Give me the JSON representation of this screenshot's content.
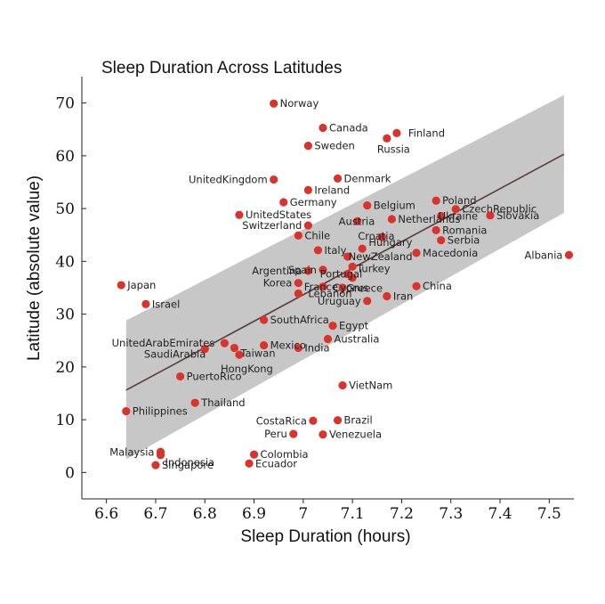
{
  "chart_data": {
    "type": "scatter",
    "title": "Sleep Duration Across Latitudes",
    "xlabel": "Sleep Duration (hours)",
    "ylabel": "Latitude (absolute value)",
    "xlim": [
      6.55,
      7.55
    ],
    "ylim": [
      -5,
      75
    ],
    "x_ticks": [
      6.6,
      6.7,
      6.8,
      6.9,
      7.0,
      7.1,
      7.2,
      7.3,
      7.4,
      7.5
    ],
    "x_tick_labels": [
      "6.6",
      "6.7",
      "6.8",
      "6.9",
      "7",
      "7.1",
      "7.2",
      "7.3",
      "7.4",
      "7.5"
    ],
    "y_ticks": [
      0,
      10,
      20,
      30,
      40,
      50,
      60,
      70
    ],
    "y_tick_labels": [
      "0",
      "10",
      "20",
      "30",
      "40",
      "50",
      "60",
      "70"
    ],
    "grid": false,
    "regression": {
      "x": [
        6.64,
        7.53
      ],
      "y": [
        15.6,
        60.3
      ],
      "ci_upper": [
        28.8,
        71.5
      ],
      "ci_lower": [
        2.5,
        49.2
      ]
    },
    "points": [
      {
        "label": "Norway",
        "x": 6.94,
        "y": 69.9
      },
      {
        "label": "Canada",
        "x": 7.04,
        "y": 65.3
      },
      {
        "label": "Finland",
        "x": 7.19,
        "y": 64.3
      },
      {
        "label": "Russia",
        "x": 7.17,
        "y": 63.3
      },
      {
        "label": "Sweden",
        "x": 7.01,
        "y": 61.9
      },
      {
        "label": "UnitedKingdom",
        "x": 6.94,
        "y": 55.5
      },
      {
        "label": "Denmark",
        "x": 7.07,
        "y": 55.7
      },
      {
        "label": "Ireland",
        "x": 7.01,
        "y": 53.5
      },
      {
        "label": "Germany",
        "x": 6.96,
        "y": 51.2
      },
      {
        "label": "Belgium",
        "x": 7.13,
        "y": 50.6
      },
      {
        "label": "Poland",
        "x": 7.27,
        "y": 51.5
      },
      {
        "label": "CzechRepublic",
        "x": 7.31,
        "y": 49.9
      },
      {
        "label": "Ukraine",
        "x": 7.28,
        "y": 48.6
      },
      {
        "label": "Slovakia",
        "x": 7.38,
        "y": 48.7
      },
      {
        "label": "UnitedStates",
        "x": 6.87,
        "y": 48.8
      },
      {
        "label": "Netherlands",
        "x": 7.18,
        "y": 48.0
      },
      {
        "label": "Austria",
        "x": 7.11,
        "y": 47.6
      },
      {
        "label": "Switzerland",
        "x": 7.01,
        "y": 46.8
      },
      {
        "label": "Romania",
        "x": 7.27,
        "y": 45.9
      },
      {
        "label": "Chile",
        "x": 6.99,
        "y": 44.9
      },
      {
        "label": "Hungary",
        "x": 7.16,
        "y": 44.6
      },
      {
        "label": "Serbia",
        "x": 7.28,
        "y": 44.0
      },
      {
        "label": "Italy",
        "x": 7.03,
        "y": 42.1
      },
      {
        "label": "Croatia",
        "x": 7.12,
        "y": 42.4
      },
      {
        "label": "Macedonia",
        "x": 7.23,
        "y": 41.6
      },
      {
        "label": "Albania",
        "x": 7.54,
        "y": 41.2
      },
      {
        "label": "NewZealand",
        "x": 7.09,
        "y": 40.9
      },
      {
        "label": "Turkey",
        "x": 7.1,
        "y": 39.0
      },
      {
        "label": "Spain",
        "x": 7.04,
        "y": 38.4
      },
      {
        "label": "Argentina",
        "x": 7.01,
        "y": 38.2
      },
      {
        "label": "Portugal",
        "x": 7.09,
        "y": 37.6
      },
      {
        "label": "Greece",
        "x": 7.1,
        "y": 36.9
      },
      {
        "label": "Korea",
        "x": 6.99,
        "y": 35.9
      },
      {
        "label": "France",
        "x": 7.04,
        "y": 35.2
      },
      {
        "label": "Cyprus",
        "x": 7.08,
        "y": 35.0
      },
      {
        "label": "China",
        "x": 7.23,
        "y": 35.3
      },
      {
        "label": "Japan",
        "x": 6.63,
        "y": 35.5
      },
      {
        "label": "Lebanon",
        "x": 6.99,
        "y": 33.9
      },
      {
        "label": "Iran",
        "x": 7.17,
        "y": 33.4
      },
      {
        "label": "Uruguay",
        "x": 7.13,
        "y": 32.5
      },
      {
        "label": "Israel",
        "x": 6.68,
        "y": 31.9
      },
      {
        "label": "SouthAfrica",
        "x": 6.92,
        "y": 28.9
      },
      {
        "label": "Egypt",
        "x": 7.06,
        "y": 27.8
      },
      {
        "label": "Australia",
        "x": 7.05,
        "y": 25.3
      },
      {
        "label": "UnitedArabEmirates",
        "x": 6.84,
        "y": 24.5
      },
      {
        "label": "SaudiArabia",
        "x": 6.8,
        "y": 23.4
      },
      {
        "label": "Taiwan",
        "x": 6.86,
        "y": 23.6
      },
      {
        "label": "Mexico",
        "x": 6.92,
        "y": 24.1
      },
      {
        "label": "India",
        "x": 6.99,
        "y": 23.6
      },
      {
        "label": "HongKong",
        "x": 6.87,
        "y": 22.3
      },
      {
        "label": "PuertoRico",
        "x": 6.75,
        "y": 18.2
      },
      {
        "label": "VietNam",
        "x": 7.08,
        "y": 16.5
      },
      {
        "label": "Thailand",
        "x": 6.78,
        "y": 13.2
      },
      {
        "label": "Philippines",
        "x": 6.64,
        "y": 11.6
      },
      {
        "label": "CostaRica",
        "x": 7.02,
        "y": 9.8
      },
      {
        "label": "Brazil",
        "x": 7.07,
        "y": 9.9
      },
      {
        "label": "Peru",
        "x": 6.98,
        "y": 7.3
      },
      {
        "label": "Venezuela",
        "x": 7.04,
        "y": 7.2
      },
      {
        "label": "Malaysia",
        "x": 6.71,
        "y": 3.9
      },
      {
        "label": "Indonesia",
        "x": 6.71,
        "y": 3.3
      },
      {
        "label": "Colombia",
        "x": 6.9,
        "y": 3.4
      },
      {
        "label": "Singapore",
        "x": 6.7,
        "y": 1.4
      },
      {
        "label": "Ecuador",
        "x": 6.89,
        "y": 1.7
      }
    ]
  }
}
